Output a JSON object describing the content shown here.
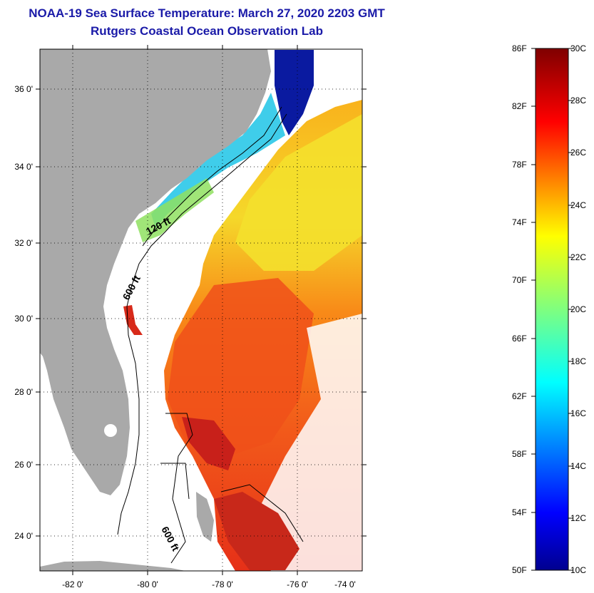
{
  "map": {
    "title_line1": "NOAA-19 Sea Surface Temperature:  March 27, 2020 2203 GMT",
    "title_line2": "Rutgers Coastal Ocean Observation Lab",
    "lat_ticks": [
      "36 0'",
      "34 0'",
      "32 0'",
      "30 0'",
      "28 0'",
      "26 0'",
      "24 0'"
    ],
    "lon_ticks": [
      "-82 0'",
      "-80 0'",
      "-78 0'",
      "-76 0'",
      "-74 0'"
    ],
    "contour_labels": [
      "120 ft",
      "600 ft",
      "600 ft"
    ],
    "colors": {
      "land": "#a9a9a9",
      "title": "#1a1aa8",
      "cold": "#0a1aa0",
      "cool": "#2ad0e0",
      "mild": "#f2ea2a",
      "warm": "#f88a18",
      "hot": "#e63018",
      "hottest": "#a01010"
    }
  },
  "colorbar": {
    "fahrenheit": [
      "86F",
      "82F",
      "78F",
      "74F",
      "70F",
      "66F",
      "62F",
      "58F",
      "54F",
      "50F"
    ],
    "celsius": [
      "30C",
      "28C",
      "26C",
      "24C",
      "22C",
      "20C",
      "18C",
      "16C",
      "14C",
      "12C",
      "10C"
    ],
    "range_f": [
      50,
      86
    ],
    "range_c": [
      10,
      30
    ]
  }
}
